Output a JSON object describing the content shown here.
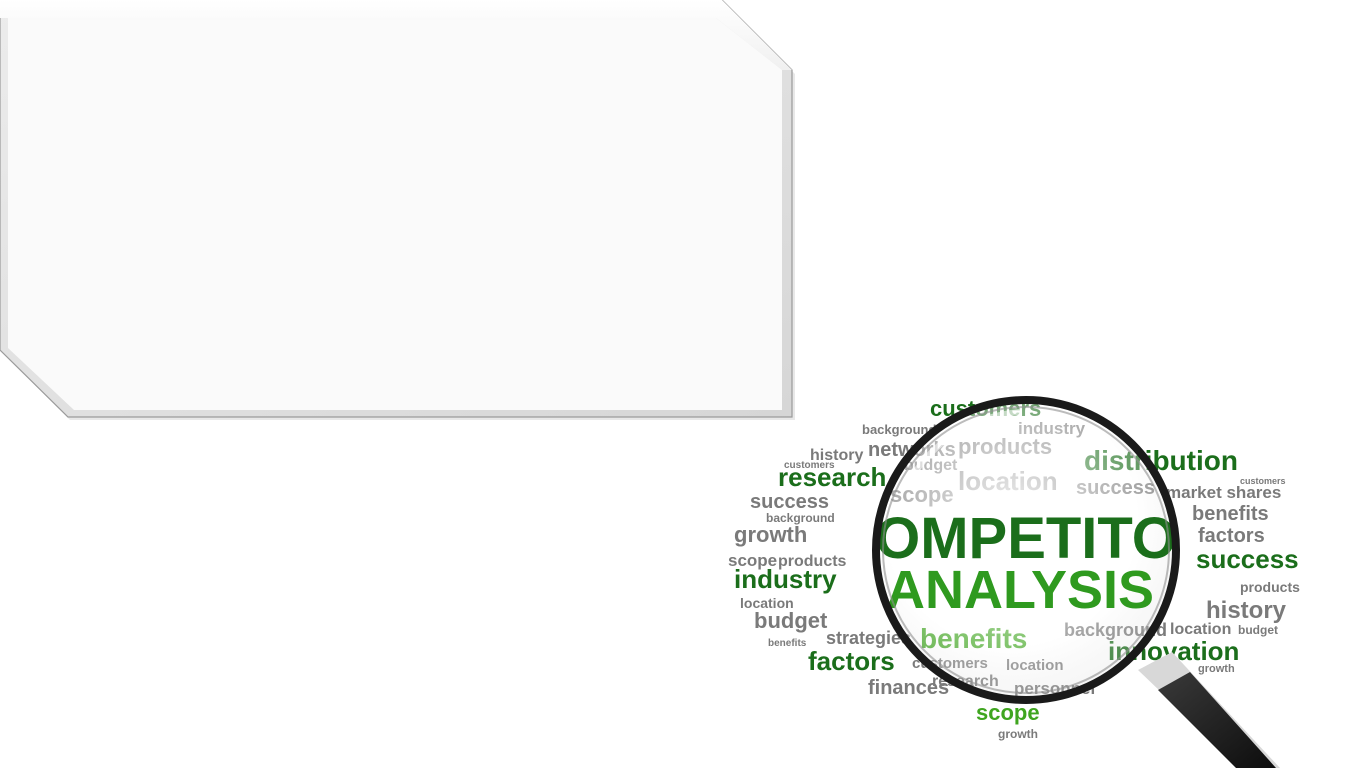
{
  "slide": {
    "title": "",
    "colors": {
      "background": "#ffffff",
      "panel_fill": "#fafafa",
      "dark_green": "#1b6e1b",
      "bright_green": "#3fa51f",
      "gray": "#8a8a8a"
    }
  },
  "image": {
    "icon": "magnifying-glass-icon",
    "lens_words": [
      "COMPETITOR",
      "ANALYSIS",
      "benefits",
      "customers",
      "products",
      "location",
      "scope"
    ],
    "words": [
      {
        "text": "customers",
        "c": "g",
        "s": 22
      },
      {
        "text": "industry",
        "c": "m",
        "s": 17
      },
      {
        "text": "background",
        "c": "m",
        "s": 13
      },
      {
        "text": "products",
        "c": "m",
        "s": 22
      },
      {
        "text": "distribution",
        "c": "d",
        "s": 28
      },
      {
        "text": "research",
        "c": "d",
        "s": 26
      },
      {
        "text": "history",
        "c": "m",
        "s": 16
      },
      {
        "text": "networks",
        "c": "m",
        "s": 20
      },
      {
        "text": "budget",
        "c": "m",
        "s": 16
      },
      {
        "text": "location",
        "c": "m",
        "s": 26
      },
      {
        "text": "success",
        "c": "m",
        "s": 20
      },
      {
        "text": "market shares",
        "c": "m",
        "s": 17
      },
      {
        "text": "success",
        "c": "m",
        "s": 20
      },
      {
        "text": "scope",
        "c": "m",
        "s": 22
      },
      {
        "text": "benefits",
        "c": "m",
        "s": 20
      },
      {
        "text": "background",
        "c": "m",
        "s": 12
      },
      {
        "text": "growth",
        "c": "m",
        "s": 22
      },
      {
        "text": "factors",
        "c": "m",
        "s": 20
      },
      {
        "text": "scope",
        "c": "m",
        "s": 17
      },
      {
        "text": "products",
        "c": "m",
        "s": 16
      },
      {
        "text": "success",
        "c": "d",
        "s": 26
      },
      {
        "text": "industry",
        "c": "d",
        "s": 26
      },
      {
        "text": "location",
        "c": "m",
        "s": 14
      },
      {
        "text": "products",
        "c": "m",
        "s": 14
      },
      {
        "text": "budget",
        "c": "m",
        "s": 22
      },
      {
        "text": "history",
        "c": "m",
        "s": 24
      },
      {
        "text": "benefits",
        "c": "g",
        "s": 28
      },
      {
        "text": "background",
        "c": "m",
        "s": 18
      },
      {
        "text": "location",
        "c": "m",
        "s": 16
      },
      {
        "text": "budget",
        "c": "m",
        "s": 12
      },
      {
        "text": "factors",
        "c": "d",
        "s": 26
      },
      {
        "text": "innovation",
        "c": "d",
        "s": 26
      },
      {
        "text": "customers",
        "c": "m",
        "s": 15
      },
      {
        "text": "location",
        "c": "m",
        "s": 15
      },
      {
        "text": "research",
        "c": "m",
        "s": 16
      },
      {
        "text": "personnel",
        "c": "m",
        "s": 17
      },
      {
        "text": "finances",
        "c": "m",
        "s": 20
      },
      {
        "text": "scope",
        "c": "g",
        "s": 22
      },
      {
        "text": "growth",
        "c": "m",
        "s": 12
      },
      {
        "text": "strategies",
        "c": "m",
        "s": 18
      },
      {
        "text": "growth",
        "c": "m",
        "s": 11
      },
      {
        "text": "customers",
        "c": "m",
        "s": 10
      },
      {
        "text": "benefits",
        "c": "m",
        "s": 10
      },
      {
        "text": "customers",
        "c": "m",
        "s": 9
      }
    ]
  }
}
